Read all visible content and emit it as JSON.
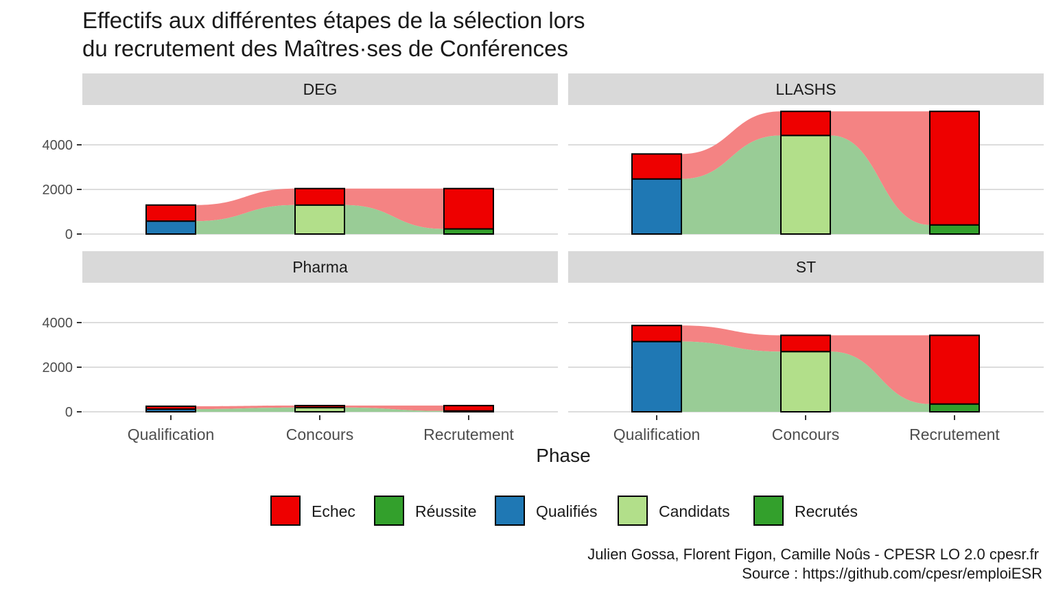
{
  "chart_data": {
    "type": "bar",
    "title_lines": [
      "Effectifs aux différentes étapes de la sélection lors",
      "du recrutement des Maîtres·ses de Conférences"
    ],
    "xlabel": "Phase",
    "ylabel": "",
    "categories": [
      "Qualification",
      "Concours",
      "Recrutement"
    ],
    "yticks": [
      0,
      2000,
      4000
    ],
    "ylim": [
      0,
      5600
    ],
    "grid": true,
    "legend_position": "bottom",
    "legend": [
      {
        "name": "Echec",
        "color": "#EE0000"
      },
      {
        "name": "Réussite",
        "color": "#33A02C"
      },
      {
        "name": "Qualifiés",
        "color": "#1F78B4"
      },
      {
        "name": "Candidats",
        "color": "#B2DF8A"
      },
      {
        "name": "Recrutés",
        "color": "#33A02C"
      }
    ],
    "flow_colors": {
      "success": "#99CC96",
      "fail": "#F48383"
    },
    "panels": [
      {
        "name": "DEG",
        "bars": [
          {
            "category": "Qualification",
            "base_label": "Qualifiés",
            "base_color": "#1F78B4",
            "base": 580,
            "echec": 720
          },
          {
            "category": "Concours",
            "base_label": "Candidats",
            "base_color": "#B2DF8A",
            "base": 1300,
            "echec": 740
          },
          {
            "category": "Recrutement",
            "base_label": "Recrutés",
            "base_color": "#33A02C",
            "base": 230,
            "echec": 1810
          }
        ]
      },
      {
        "name": "LLASHS",
        "bars": [
          {
            "category": "Qualification",
            "base_label": "Qualifiés",
            "base_color": "#1F78B4",
            "base": 2470,
            "echec": 1120
          },
          {
            "category": "Concours",
            "base_label": "Candidats",
            "base_color": "#B2DF8A",
            "base": 4420,
            "echec": 1080
          },
          {
            "category": "Recrutement",
            "base_label": "Recrutés",
            "base_color": "#33A02C",
            "base": 410,
            "echec": 5090
          }
        ]
      },
      {
        "name": "Pharma",
        "bars": [
          {
            "category": "Qualification",
            "base_label": "Qualifiés",
            "base_color": "#1F78B4",
            "base": 120,
            "echec": 130
          },
          {
            "category": "Concours",
            "base_label": "Candidats",
            "base_color": "#B2DF8A",
            "base": 190,
            "echec": 90
          },
          {
            "category": "Recrutement",
            "base_label": "Recrutés",
            "base_color": "#33A02C",
            "base": 40,
            "echec": 240
          }
        ]
      },
      {
        "name": "ST",
        "bars": [
          {
            "category": "Qualification",
            "base_label": "Qualifiés",
            "base_color": "#1F78B4",
            "base": 3150,
            "echec": 720
          },
          {
            "category": "Concours",
            "base_label": "Candidats",
            "base_color": "#B2DF8A",
            "base": 2700,
            "echec": 730
          },
          {
            "category": "Recrutement",
            "base_label": "Recrutés",
            "base_color": "#33A02C",
            "base": 350,
            "echec": 3080
          }
        ]
      }
    ],
    "caption_lines": [
      "Julien Gossa, Florent Figon, Camille Noûs - CPESR LO 2.0 cpesr.fr",
      "Source : https://github.com/cpesr/emploiESR"
    ]
  }
}
